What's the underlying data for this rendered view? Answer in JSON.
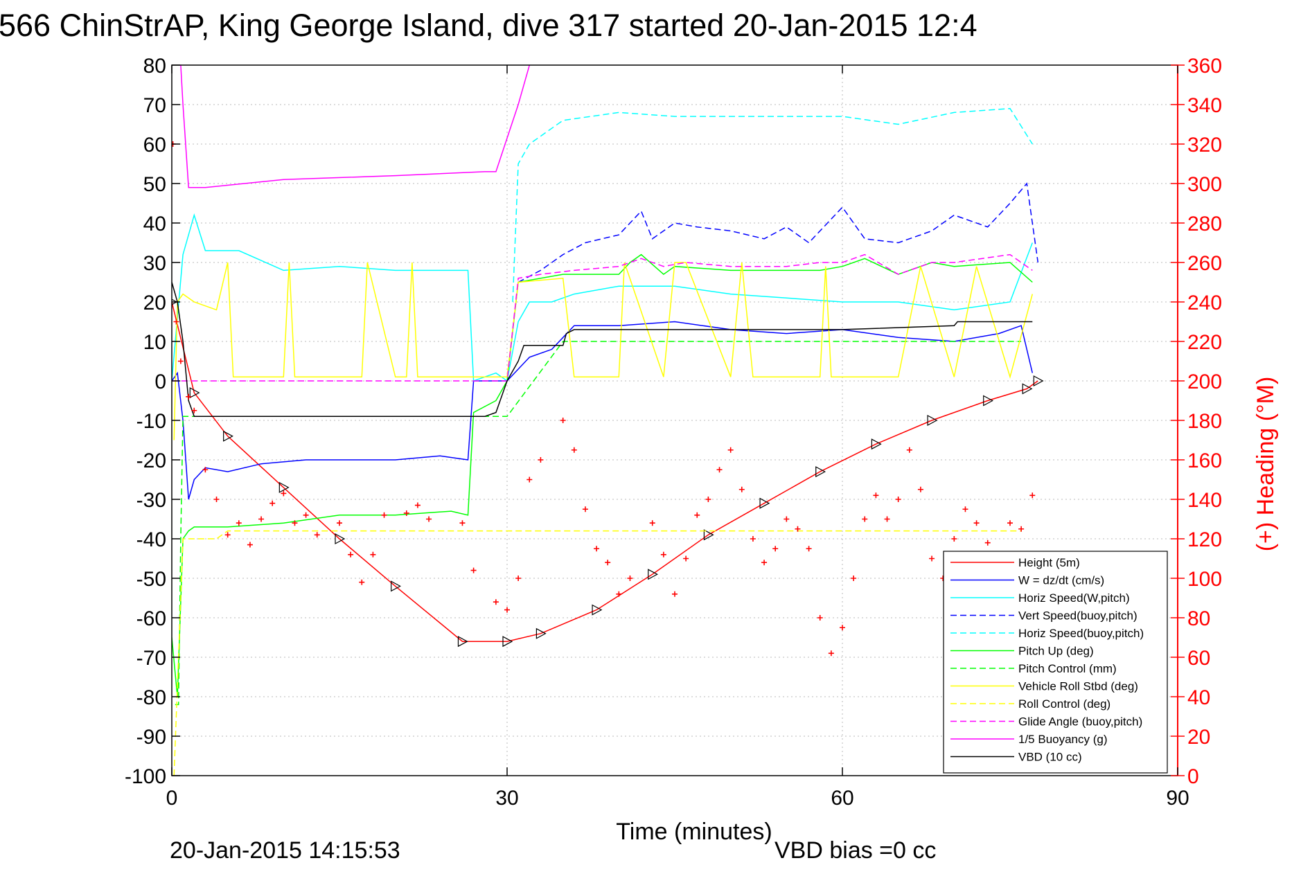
{
  "chart_data": {
    "type": "line",
    "title": "566 ChinStrAP, King George Island, dive 317 started 20-Jan-2015 12:4",
    "xlabel": "Time (minutes)",
    "ylabel_right": "(+) Heading (°M)",
    "xlim": [
      0,
      90
    ],
    "ylim_left": [
      -100,
      80
    ],
    "ylim_right": [
      0,
      360
    ],
    "xticks": [
      "0",
      "30",
      "60",
      "90"
    ],
    "yticks_left": [
      "80",
      "70",
      "60",
      "50",
      "40",
      "30",
      "20",
      "10",
      "0",
      "-10",
      "-20",
      "-30",
      "-40",
      "-50",
      "-60",
      "-70",
      "-80",
      "-90",
      "-100"
    ],
    "yticks_right": [
      "360",
      "340",
      "320",
      "300",
      "280",
      "260",
      "240",
      "220",
      "200",
      "180",
      "160",
      "140",
      "120",
      "100",
      "80",
      "60",
      "40",
      "20",
      "0"
    ],
    "grid": true,
    "legend_position": "bottom-right",
    "footer_left": "20-Jan-2015 14:15:53",
    "footer_right": "VBD bias =0 cc",
    "series": [
      {
        "name": "Height (5m)",
        "color": "#ff0000",
        "style": "solid",
        "marker": "triangle",
        "x": [
          0,
          2,
          5,
          10,
          15,
          20,
          26,
          30,
          33,
          38,
          43,
          48,
          53,
          58,
          63,
          68,
          73,
          76.5,
          77.5
        ],
        "y": [
          20,
          -3,
          -14,
          -27,
          -40,
          -52,
          -66,
          -66,
          -64,
          -58,
          -49,
          -39,
          -31,
          -23,
          -16,
          -10,
          -5,
          -2,
          0
        ]
      },
      {
        "name": "W = dz/dt (cm/s)",
        "color": "#0000ff",
        "style": "solid",
        "x": [
          0,
          0.5,
          1,
          1.5,
          2,
          3,
          5,
          8,
          12,
          16,
          20,
          24,
          26.5,
          27,
          30,
          32,
          34,
          35,
          36,
          40,
          45,
          50,
          55,
          60,
          65,
          70,
          74,
          76,
          77
        ],
        "y": [
          0,
          2,
          -10,
          -30,
          -25,
          -22,
          -23,
          -21,
          -20,
          -20,
          -20,
          -19,
          -20,
          0,
          0,
          6,
          8,
          11,
          14,
          14,
          15,
          13,
          12,
          13,
          11,
          10,
          12,
          14,
          2
        ]
      },
      {
        "name": "Horiz Speed(W,pitch)",
        "color": "#00ffff",
        "style": "solid",
        "x": [
          0,
          1,
          2,
          3,
          6,
          10,
          15,
          20,
          25,
          26.5,
          27,
          29,
          30,
          31,
          32,
          34,
          36,
          40,
          45,
          50,
          55,
          60,
          65,
          70,
          75,
          77
        ],
        "y": [
          0,
          32,
          42,
          33,
          33,
          28,
          29,
          28,
          28,
          28,
          0,
          2,
          0,
          15,
          20,
          20,
          22,
          24,
          24,
          22,
          21,
          20,
          20,
          18,
          20,
          35
        ]
      },
      {
        "name": "Vert Speed(buoy,pitch)",
        "color": "#0000ff",
        "style": "dashed",
        "x": [
          31,
          33,
          35,
          37,
          40,
          42,
          43,
          45,
          47,
          50,
          53,
          55,
          57,
          60,
          62,
          65,
          68,
          70,
          73,
          75,
          76.5,
          77.5
        ],
        "y": [
          25,
          28,
          32,
          35,
          37,
          43,
          36,
          40,
          39,
          38,
          36,
          39,
          35,
          44,
          36,
          35,
          38,
          42,
          39,
          45,
          50,
          30
        ]
      },
      {
        "name": "Horiz Speed(buoy,pitch)",
        "color": "#00ffff",
        "style": "dashed",
        "x": [
          30.5,
          31,
          32,
          35,
          40,
          45,
          50,
          55,
          60,
          65,
          70,
          75,
          77
        ],
        "y": [
          20,
          55,
          60,
          66,
          68,
          67,
          67,
          67,
          67,
          65,
          68,
          69,
          60
        ]
      },
      {
        "name": "Pitch Up (deg)",
        "color": "#00ff00",
        "style": "solid",
        "x": [
          0,
          0.5,
          1,
          1.5,
          2,
          5,
          10,
          15,
          20,
          25,
          26.5,
          27,
          29,
          30,
          31,
          35,
          40,
          41,
          42,
          44,
          45,
          50,
          55,
          58,
          60,
          62,
          65,
          68,
          70,
          75,
          77
        ],
        "y": [
          -65,
          -80,
          -40,
          -38,
          -37,
          -37,
          -36,
          -34,
          -34,
          -33,
          -34,
          -8,
          -5,
          0,
          25,
          27,
          27,
          30,
          32,
          27,
          29,
          28,
          28,
          28,
          29,
          31,
          27,
          30,
          29,
          30,
          25
        ]
      },
      {
        "name": "Pitch Control (mm)",
        "color": "#00ff00",
        "style": "dashed",
        "x": [
          0.3,
          0.6,
          0.8,
          1,
          1.5,
          2,
          3,
          10,
          18,
          22,
          23,
          30,
          35,
          40,
          50,
          60,
          70,
          76
        ],
        "y": [
          -82,
          -82,
          -40,
          -9,
          -9,
          -9,
          -9,
          -9,
          -9,
          -9,
          -9,
          -9,
          10,
          10,
          10,
          10,
          10,
          10
        ]
      },
      {
        "name": "Vehicle Roll Stbd (deg)",
        "color": "#ffff00",
        "style": "solid",
        "x": [
          0.2,
          0.5,
          1,
          2,
          4,
          5,
          5.5,
          10,
          10.5,
          11,
          17,
          17.5,
          20,
          21,
          21.5,
          22,
          26,
          28,
          30,
          31,
          35,
          36,
          40,
          40.5,
          44,
          45,
          46,
          50,
          51,
          52,
          55,
          58,
          58.5,
          59,
          62,
          65,
          67,
          70,
          72,
          75,
          77
        ],
        "y": [
          -15,
          20,
          22,
          20,
          18,
          30,
          1,
          1,
          30,
          1,
          1,
          30,
          1,
          1,
          30,
          1,
          1,
          1,
          1,
          25,
          26,
          1,
          1,
          30,
          1,
          30,
          30,
          1,
          30,
          1,
          1,
          1,
          29,
          1,
          1,
          1,
          29,
          1,
          29,
          1,
          22
        ]
      },
      {
        "name": "Roll Control (deg)",
        "color": "#ffff00",
        "style": "dashed",
        "x": [
          0.2,
          1,
          2,
          3,
          4,
          5,
          6,
          8,
          10,
          20,
          30,
          35,
          40,
          45,
          50,
          55,
          60,
          65,
          70,
          76
        ],
        "y": [
          -100,
          -40,
          -40,
          -40,
          -40,
          -38,
          -38,
          -38,
          -38,
          -38,
          -38,
          -38,
          -38,
          -38,
          -38,
          -38,
          -38,
          -38,
          -38,
          -38
        ]
      },
      {
        "name": "Glide Angle (buoy,pitch)",
        "color": "#ff00ff",
        "style": "dashed",
        "x": [
          0,
          10,
          20,
          30,
          31,
          33,
          36,
          40,
          42,
          44,
          46,
          50,
          55,
          58,
          60,
          62,
          65,
          68,
          70,
          75,
          77
        ],
        "y": [
          0,
          0,
          0,
          0,
          26,
          27,
          28,
          29,
          31,
          29,
          30,
          29,
          29,
          30,
          30,
          32,
          27,
          30,
          30,
          32,
          28
        ]
      },
      {
        "name": "1/5 Buoyancy (g)",
        "color": "#ff00ff",
        "style": "solid",
        "x": [
          0.8,
          1,
          1.5,
          3,
          10,
          20,
          28,
          29,
          31,
          32
        ],
        "y": [
          80,
          70,
          49,
          49,
          51,
          52,
          53,
          53,
          70,
          80
        ]
      },
      {
        "name": "VBD (10 cc)",
        "color": "#000000",
        "style": "solid",
        "x": [
          0,
          0.5,
          1,
          1.5,
          2,
          28,
          29,
          30,
          31,
          31.5,
          35,
          35.3,
          36,
          50,
          60,
          70,
          70.3,
          77
        ],
        "y": [
          25,
          20,
          10,
          -5,
          -9,
          -9,
          -8,
          0,
          5,
          9,
          9,
          12,
          13,
          13,
          13,
          14,
          15,
          15
        ]
      },
      {
        "name": "(+) Heading",
        "color": "#ff0000",
        "style": "markers",
        "marker": "plus",
        "axis": "right",
        "x": [
          0.1,
          0.4,
          0.8,
          1.5,
          2,
          3,
          4,
          5,
          6,
          7,
          8,
          9,
          10,
          11,
          12,
          13,
          15,
          16,
          17,
          18,
          19,
          21,
          22,
          23,
          26,
          27,
          29,
          30,
          31,
          32,
          33,
          35,
          36,
          37,
          38,
          39,
          40,
          41,
          43,
          44,
          45,
          46,
          47,
          48,
          49,
          50,
          51,
          52,
          53,
          54,
          55,
          56,
          57,
          58,
          59,
          60,
          61,
          62,
          63,
          64,
          65,
          66,
          67,
          68,
          69,
          70,
          71,
          72,
          73,
          75,
          76,
          77
        ],
        "y": [
          320,
          230,
          210,
          192,
          185,
          155,
          140,
          122,
          128,
          117,
          130,
          138,
          143,
          128,
          132,
          122,
          128,
          112,
          98,
          112,
          132,
          133,
          137,
          130,
          128,
          104,
          88,
          84,
          100,
          150,
          160,
          180,
          165,
          135,
          115,
          108,
          92,
          100,
          128,
          112,
          92,
          110,
          132,
          140,
          155,
          165,
          145,
          120,
          108,
          115,
          130,
          125,
          115,
          80,
          62,
          75,
          100,
          130,
          142,
          130,
          140,
          165,
          145,
          110,
          100,
          120,
          135,
          128,
          118,
          128,
          125,
          142
        ]
      }
    ]
  }
}
